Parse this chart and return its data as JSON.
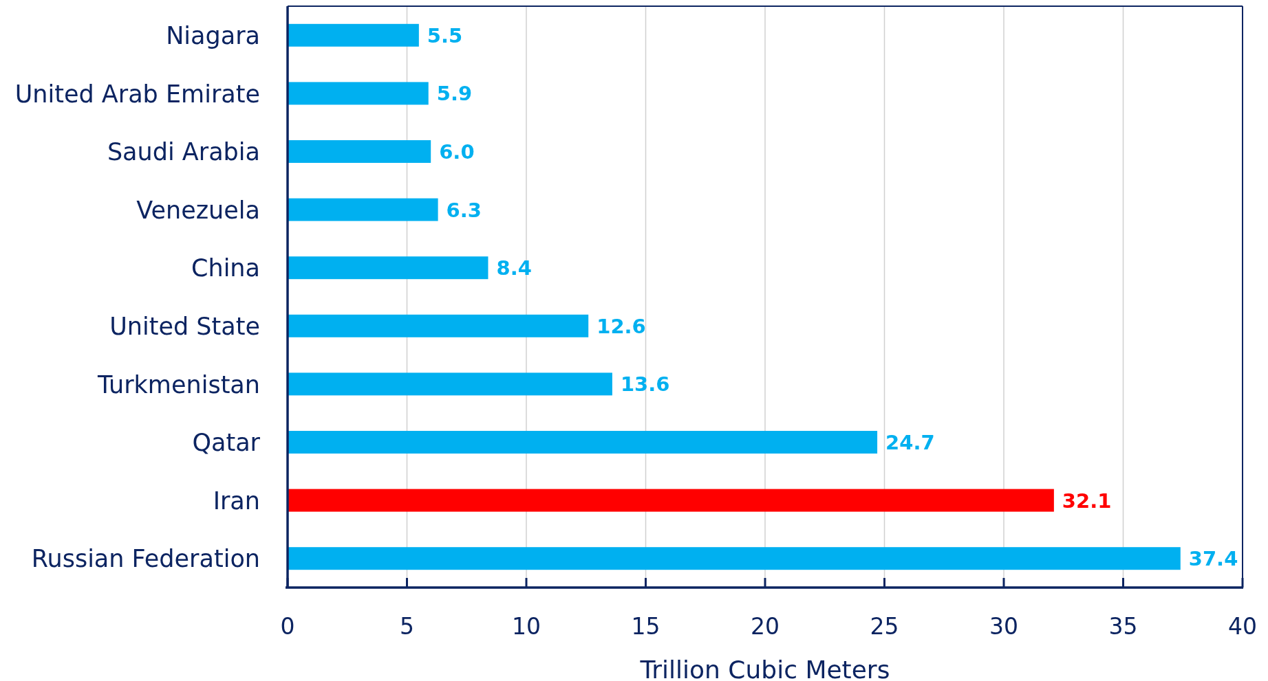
{
  "chart_data": {
    "type": "bar",
    "orientation": "horizontal",
    "categories": [
      "Niagara",
      "United Arab Emirate",
      "Saudi Arabia",
      "Venezuela",
      "China",
      "United State",
      "Turkmenistan",
      "Qatar",
      "Iran",
      "Russian Federation"
    ],
    "values": [
      5.5,
      5.9,
      6.0,
      6.3,
      8.4,
      12.6,
      13.6,
      24.7,
      32.1,
      37.4
    ],
    "value_labels": [
      "5.5",
      "5.9",
      "6.0",
      "6.3",
      "8.4",
      "12.6",
      "13.6",
      "24.7",
      "32.1",
      "37.4"
    ],
    "colors": [
      "#00b0f0",
      "#00b0f0",
      "#00b0f0",
      "#00b0f0",
      "#00b0f0",
      "#00b0f0",
      "#00b0f0",
      "#00b0f0",
      "#ff0000",
      "#00b0f0"
    ],
    "xlabel": "Trillion Cubic Meters",
    "xlim": [
      0,
      40
    ],
    "xticks": [
      0,
      5,
      10,
      15,
      20,
      25,
      30,
      35,
      40
    ],
    "grid": "x"
  }
}
